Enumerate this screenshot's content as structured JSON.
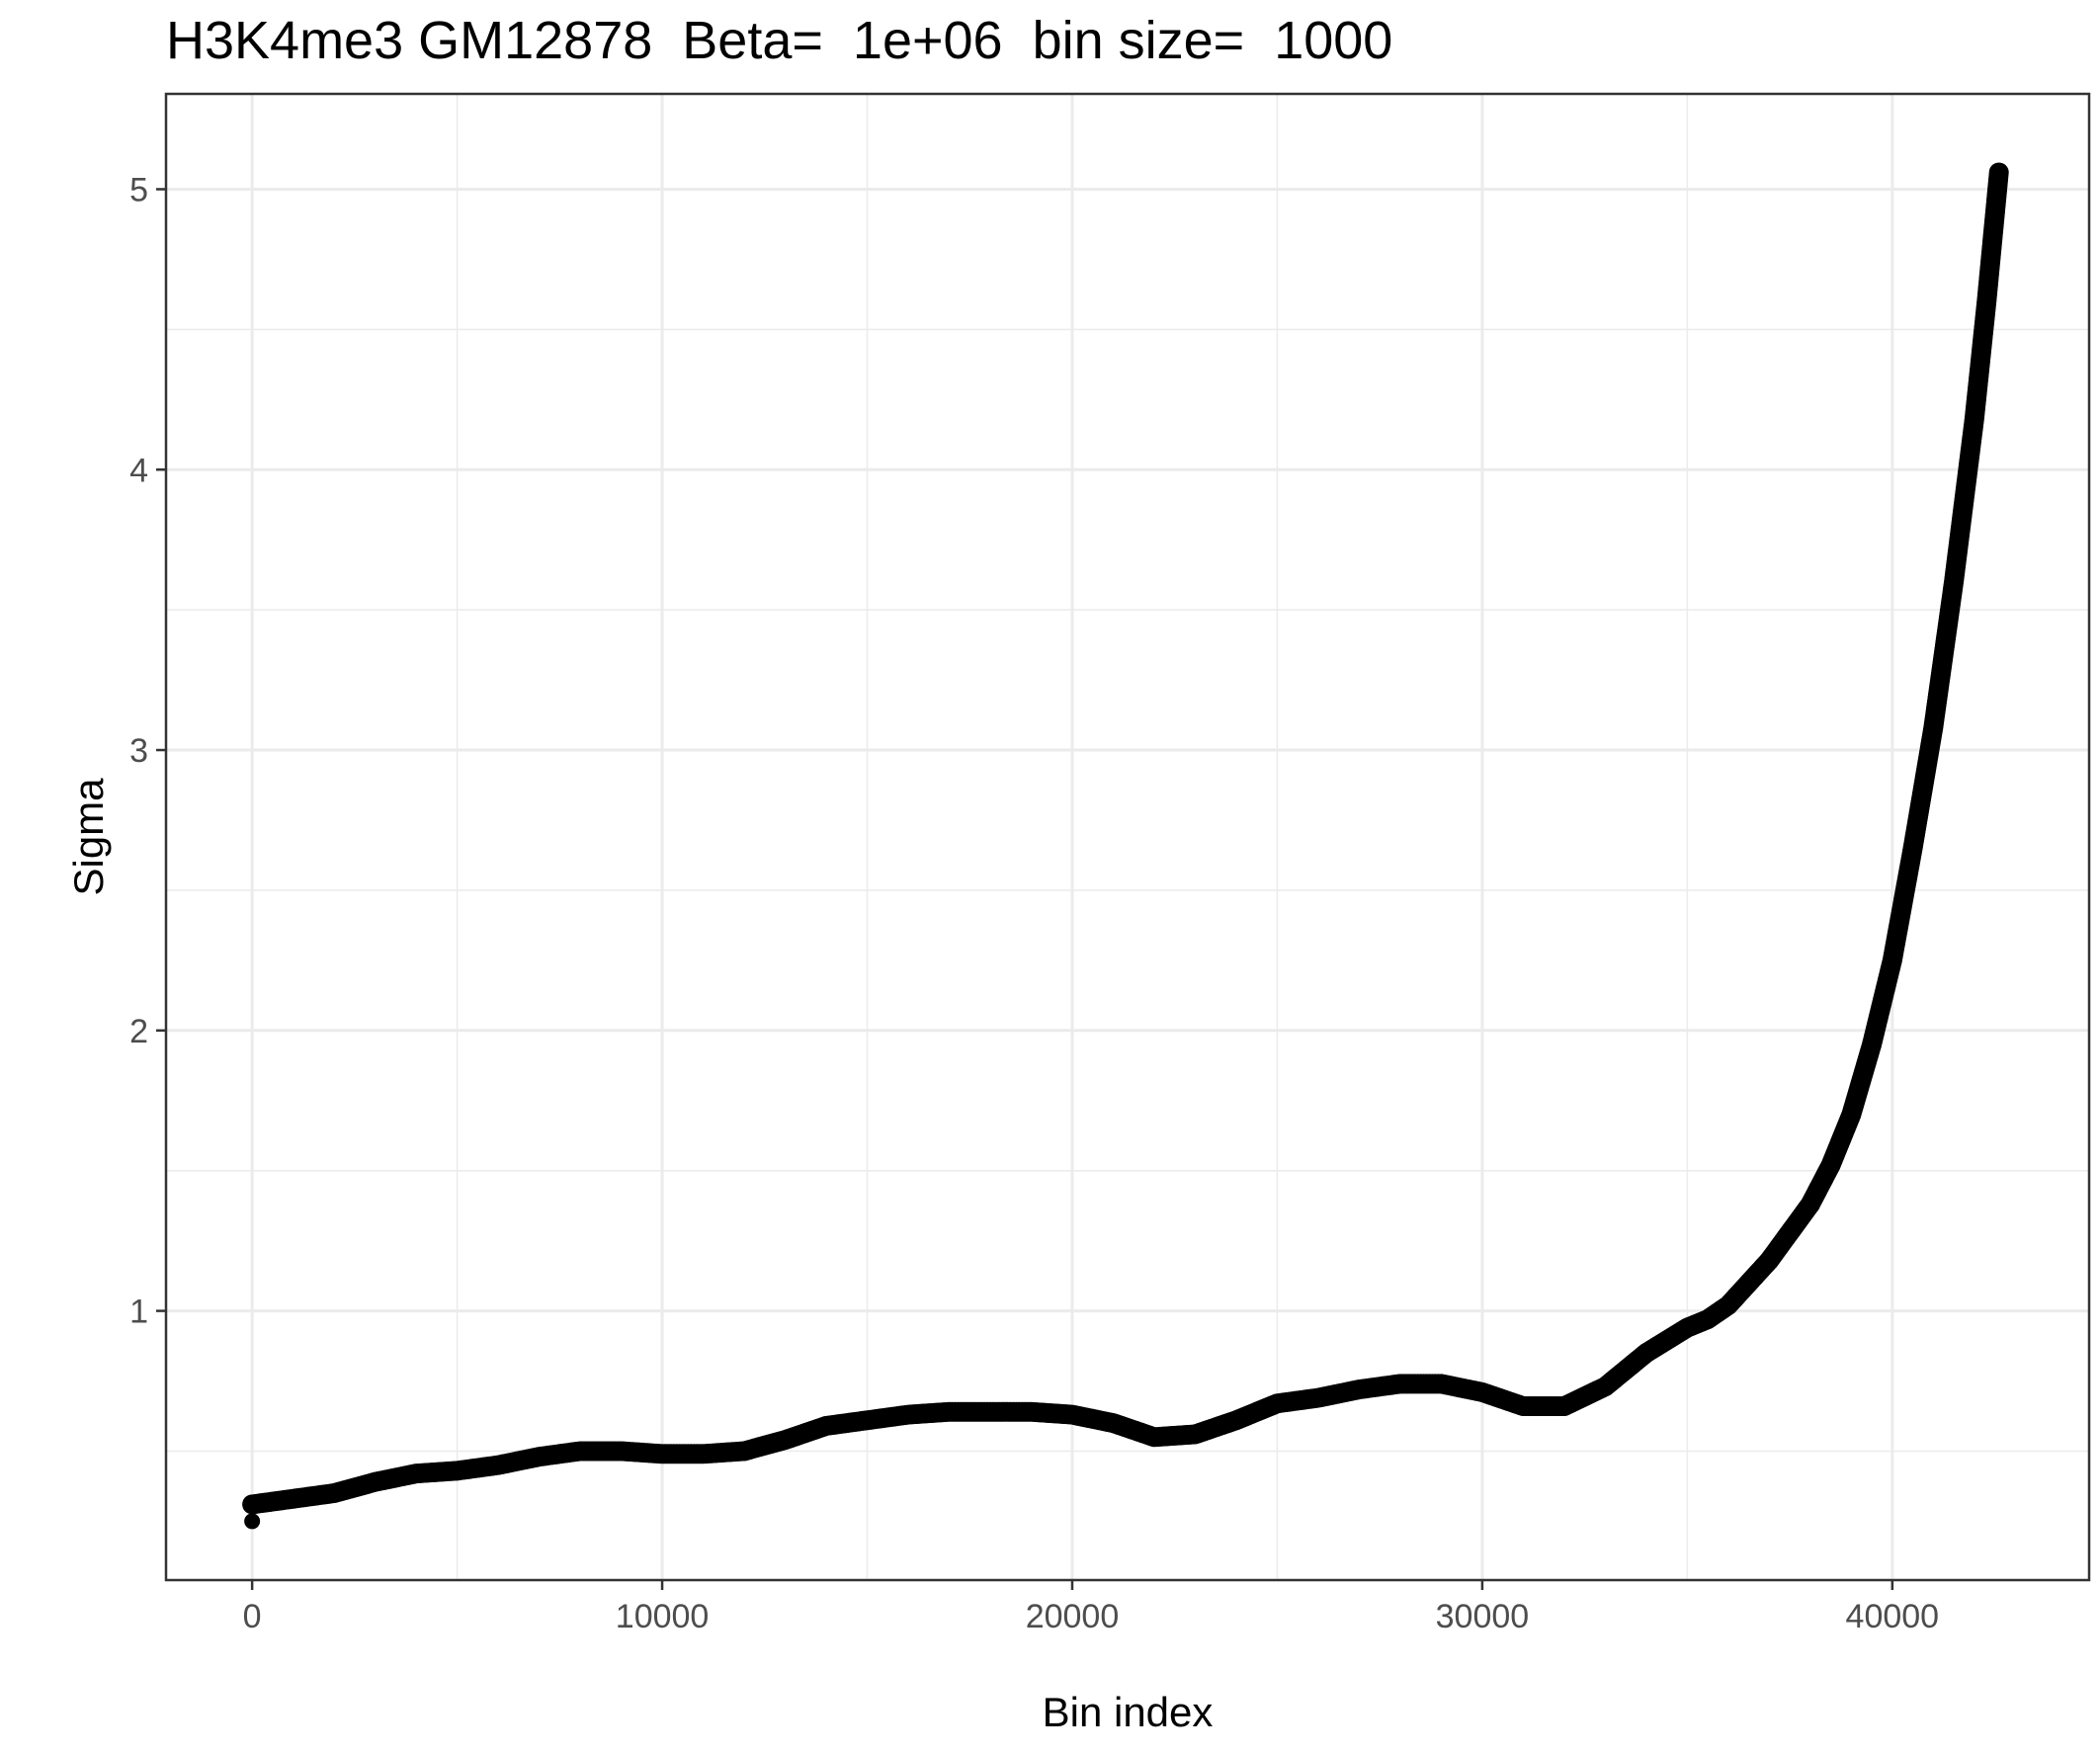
{
  "chart_data": {
    "type": "scatter",
    "title": "H3K4me3 GM12878  Beta=  1e+06  bin size=  1000",
    "xlabel": "Bin index",
    "ylabel": "Sigma",
    "xlim": [
      -2100,
      44800
    ],
    "ylim": [
      0.04,
      5.34
    ],
    "x_ticks": [
      0,
      10000,
      20000,
      30000,
      40000
    ],
    "x_tick_labels": [
      "0",
      "10000",
      "20000",
      "30000",
      "40000"
    ],
    "y_ticks": [
      1,
      2,
      3,
      4,
      5
    ],
    "y_tick_labels": [
      "1",
      "2",
      "3",
      "4",
      "5"
    ],
    "grid": true,
    "colors": {
      "points": "#000000",
      "grid": "#ebebeb",
      "panel_border": "#333333",
      "tick_text": "#4d4d4d"
    },
    "outlier_point": {
      "x": 0,
      "y": 0.25
    },
    "series": [
      {
        "x": [
          0,
          1000,
          2000,
          3000,
          4000,
          5000,
          6000,
          7000,
          8000,
          9000,
          10000,
          11000,
          12000,
          13000,
          14000,
          15000,
          16000,
          17000,
          18000,
          19000,
          20000,
          21000,
          22000,
          23000,
          24000,
          25000,
          26000,
          27000,
          28000,
          29000,
          30000,
          31000,
          32000,
          33000,
          34000,
          35000,
          35500,
          36000,
          37000,
          38000,
          38500,
          39000,
          39500,
          40000,
          40500,
          41000,
          41500,
          42000,
          42300,
          42600
        ],
        "y": [
          0.31,
          0.33,
          0.35,
          0.39,
          0.42,
          0.43,
          0.45,
          0.48,
          0.5,
          0.5,
          0.49,
          0.49,
          0.5,
          0.54,
          0.59,
          0.61,
          0.63,
          0.64,
          0.64,
          0.64,
          0.63,
          0.6,
          0.55,
          0.56,
          0.61,
          0.67,
          0.69,
          0.72,
          0.74,
          0.74,
          0.71,
          0.66,
          0.66,
          0.73,
          0.85,
          0.94,
          0.97,
          1.02,
          1.18,
          1.38,
          1.52,
          1.7,
          1.95,
          2.25,
          2.65,
          3.08,
          3.6,
          4.18,
          4.6,
          5.06
        ]
      }
    ]
  }
}
